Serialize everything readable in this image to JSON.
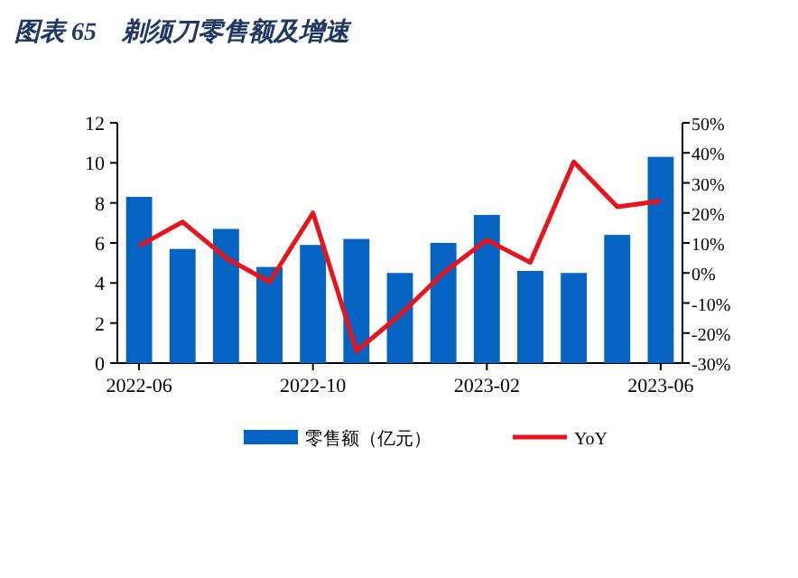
{
  "chart_data": {
    "type": "bar",
    "title": "图表 65　剃须刀零售额及增速",
    "categories": [
      "2022-06",
      null,
      null,
      null,
      "2022-10",
      null,
      null,
      null,
      "2023-02",
      null,
      null,
      null,
      "2023-06"
    ],
    "series": [
      {
        "name": "零售额（亿元）",
        "color": "#0563c1",
        "values": [
          8.3,
          5.7,
          6.7,
          4.8,
          5.9,
          6.2,
          4.5,
          6.0,
          7.4,
          4.6,
          4.5,
          6.4,
          10.3
        ]
      },
      {
        "name": "YoY",
        "type": "line",
        "axis": "y2",
        "color": "#e8141c",
        "values": [
          9,
          17,
          5,
          -3,
          20,
          -26,
          -14,
          0,
          11,
          3.5,
          37,
          22,
          24
        ]
      }
    ],
    "ylim": [
      0,
      12
    ],
    "yticks": [
      0,
      2,
      4,
      6,
      8,
      10,
      12
    ],
    "y2lim": [
      -30,
      50
    ],
    "y2ticks": [
      {
        "value": -30,
        "label": "-30%"
      },
      {
        "value": -20,
        "label": "-20%"
      },
      {
        "value": -10,
        "label": "-10%"
      },
      {
        "value": 0,
        "label": "0%"
      },
      {
        "value": 10,
        "label": "10%"
      },
      {
        "value": 20,
        "label": "20%"
      },
      {
        "value": 30,
        "label": "30%"
      },
      {
        "value": 40,
        "label": "40%"
      },
      {
        "value": 50,
        "label": "50%"
      }
    ],
    "legend": "bottom",
    "grid": false
  }
}
